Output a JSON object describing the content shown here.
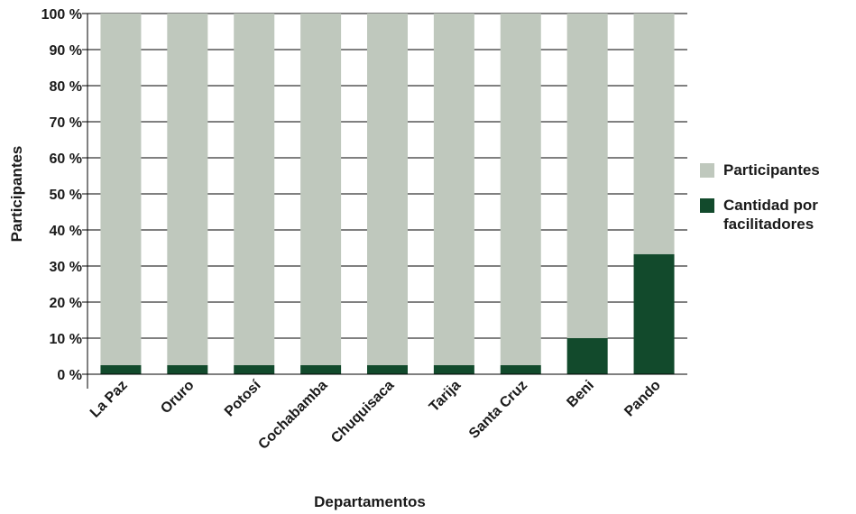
{
  "chart_data": {
    "type": "bar",
    "stacked": true,
    "xlabel": "Departamentos",
    "ylabel": "Participantes",
    "ylim": [
      0,
      100
    ],
    "y_ticks": [
      "0 %",
      "10 %",
      "20 %",
      "30 %",
      "40 %",
      "50 %",
      "60 %",
      "70 %",
      "80 %",
      "90 %",
      "100 %"
    ],
    "categories": [
      "La Paz",
      "Oruro",
      "Potosí",
      "Cochabamba",
      "Chuquisaca",
      "Tarija",
      "Santa Cruz",
      "Beni",
      "Pando"
    ],
    "series": [
      {
        "name": "Cantidad por facilitadores",
        "color": "#124a2c",
        "values": [
          2.5,
          2.5,
          2.5,
          2.5,
          2.5,
          2.5,
          2.5,
          10,
          33.3
        ]
      },
      {
        "name": "Participantes",
        "color": "#bfc8bd",
        "values": [
          97.5,
          97.5,
          97.5,
          97.5,
          97.5,
          97.5,
          97.5,
          90,
          66.7
        ]
      }
    ],
    "grid": true,
    "legend_position": "right"
  }
}
